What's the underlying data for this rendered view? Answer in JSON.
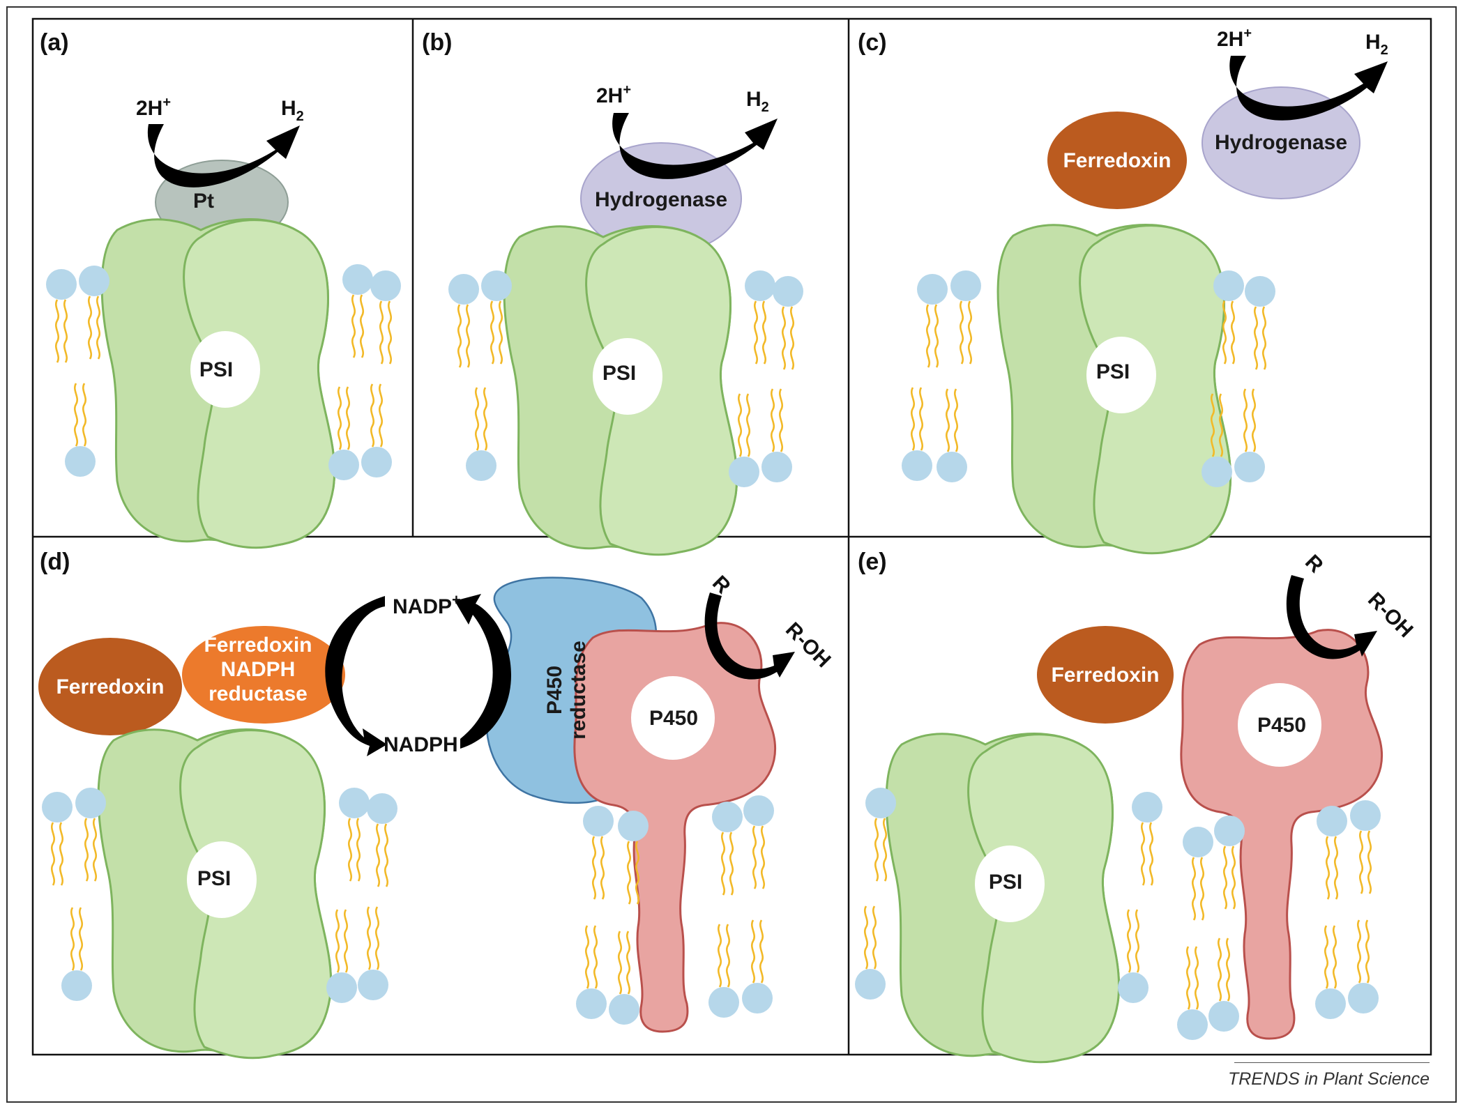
{
  "panels": {
    "a": {
      "label": "(a)",
      "psi": "PSI",
      "catalyst": "Pt",
      "substrate": "2H",
      "substrate_sup": "+",
      "product": "H",
      "product_sub": "2"
    },
    "b": {
      "label": "(b)",
      "psi": "PSI",
      "catalyst": "Hydrogenase",
      "substrate": "2H",
      "substrate_sup": "+",
      "product": "H",
      "product_sub": "2"
    },
    "c": {
      "label": "(c)",
      "psi": "PSI",
      "ferredoxin": "Ferredoxin",
      "catalyst": "Hydrogenase",
      "substrate": "2H",
      "substrate_sup": "+",
      "product": "H",
      "product_sub": "2"
    },
    "d": {
      "label": "(d)",
      "psi": "PSI",
      "ferredoxin": "Ferredoxin",
      "fnr_line1": "Ferredoxin",
      "fnr_line2": "NADPH",
      "fnr_line3": "reductase",
      "nadp": "NADP",
      "nadp_sup": "+",
      "nadph": "NADPH",
      "reductase_line1": "P450",
      "reductase_line2": "reductase",
      "p450": "P450",
      "substrate": "R",
      "product": "R-OH"
    },
    "e": {
      "label": "(e)",
      "psi": "PSI",
      "ferredoxin": "Ferredoxin",
      "p450": "P450",
      "substrate": "R",
      "product": "R-OH"
    }
  },
  "credit": "TRENDS in Plant Science",
  "colors": {
    "psi_back": "#c3e0a9",
    "psi_front": "#cde7b6",
    "psi_stroke": "#7eb45e",
    "lipid_head": "#b6d7ea",
    "lipid_tail": "#f2b928",
    "pt": "#b7c3bd",
    "hydrogenase": "#cac7e1",
    "ferredoxin": "#bb5b1f",
    "fnr": "#ec7a2c",
    "p450_reductase": "#8fc1e0",
    "p450": "#e8a4a1"
  }
}
